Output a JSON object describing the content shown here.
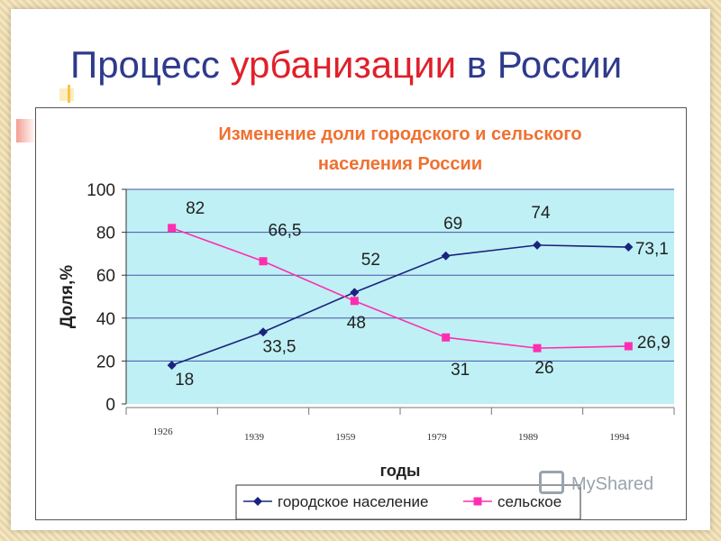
{
  "slide": {
    "title_main": "Процесс ",
    "title_accent": "урбанизации",
    "title_rest": " в России"
  },
  "watermark": {
    "text": "MyShared",
    "icon": "myshared-logo-icon"
  },
  "colors": {
    "title_blue": "#2e3a8c",
    "title_red": "#e0202a",
    "chart_title": "#f07030",
    "plot_bg": "#bff0f5",
    "grid": "#4a52a8",
    "urban": "#1a237e",
    "rural": "#ff2eb0"
  },
  "chart_data": {
    "type": "line",
    "title": "Изменение доли городского и сельского населения России",
    "title_lines": [
      "Изменение доли городского и сельского",
      "населения России"
    ],
    "xlabel": "годы",
    "ylabel": "Доля,%",
    "categories": [
      "1926",
      "1939",
      "1959",
      "1979",
      "1989",
      "1994"
    ],
    "ylim": [
      0,
      100
    ],
    "yticks": [
      0,
      20,
      40,
      60,
      80,
      100
    ],
    "grid": true,
    "legend_position": "bottom",
    "series": [
      {
        "name": "городское население",
        "values": [
          18,
          33.5,
          52,
          69,
          74,
          73.1
        ],
        "labels": [
          "18",
          "33,5",
          "52",
          "69",
          "74",
          "73,1"
        ],
        "marker": "diamond"
      },
      {
        "name": "сельское",
        "values": [
          82,
          66.5,
          48,
          31,
          26,
          26.9
        ],
        "labels": [
          "82",
          "66,5",
          "48",
          "31",
          "26",
          "26,9"
        ],
        "marker": "square"
      }
    ]
  }
}
